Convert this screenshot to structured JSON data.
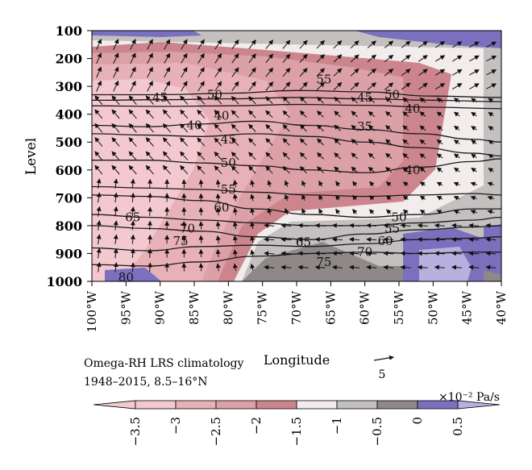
{
  "chart_data": {
    "type": "heatmap",
    "title": "Omega-RH LRS climatology",
    "subtitle": "1948–2015, 8.5–16°N",
    "xlabel": "Longitude",
    "ylabel": "Level",
    "x_ticks": [
      "100°W",
      "95°W",
      "90°W",
      "85°W",
      "80°W",
      "75°W",
      "70°W",
      "65°W",
      "60°W",
      "55°W",
      "50°W",
      "45°W",
      "40°W"
    ],
    "x_values": [
      -100,
      -95,
      -90,
      -85,
      -80,
      -75,
      -70,
      -65,
      -60,
      -55,
      -50,
      -45,
      -40
    ],
    "y_ticks": [
      "100",
      "200",
      "300",
      "400",
      "500",
      "600",
      "700",
      "800",
      "900",
      "1000"
    ],
    "y_values": [
      100,
      200,
      300,
      400,
      500,
      600,
      700,
      800,
      900,
      1000
    ],
    "xlim": [
      -100,
      -40
    ],
    "ylim": [
      1000,
      100
    ],
    "colorbar": {
      "unit": "×10⁻² Pa/s",
      "boundaries": [
        -3.5,
        -3,
        -2.5,
        -2,
        -1.5,
        -1,
        -0.5,
        0,
        0.5
      ],
      "tick_labels": [
        "−3.5",
        "−3",
        "−2.5",
        "−2",
        "−1.5",
        "−1",
        "−0.5",
        "0",
        "0.5"
      ],
      "colors": [
        "#f3c9cf",
        "#e8b1b7",
        "#dca0a7",
        "#cc858d",
        "#f2ecec",
        "#c4c0c0",
        "#8e8888",
        "#7b70bd",
        "#b8b0de"
      ],
      "extend": "both"
    },
    "reference_vector": {
      "label": "5",
      "magnitude": 5
    },
    "contour_labels": [
      {
        "text": "45",
        "lon": -90,
        "level": 340
      },
      {
        "text": "50",
        "lon": -82,
        "level": 330
      },
      {
        "text": "55",
        "lon": -66,
        "level": 275
      },
      {
        "text": "45",
        "lon": -60,
        "level": 340
      },
      {
        "text": "50",
        "lon": -56,
        "level": 330
      },
      {
        "text": "40",
        "lon": -53,
        "level": 380
      },
      {
        "text": "40",
        "lon": -81,
        "level": 405
      },
      {
        "text": "40",
        "lon": -85,
        "level": 440
      },
      {
        "text": "35",
        "lon": -60,
        "level": 445
      },
      {
        "text": "45",
        "lon": -80,
        "level": 490
      },
      {
        "text": "50",
        "lon": -80,
        "level": 575
      },
      {
        "text": "40",
        "lon": -53,
        "level": 600
      },
      {
        "text": "55",
        "lon": -80,
        "level": 670
      },
      {
        "text": "60",
        "lon": -81,
        "level": 735
      },
      {
        "text": "65",
        "lon": -94,
        "level": 770
      },
      {
        "text": "50",
        "lon": -55,
        "level": 770
      },
      {
        "text": "55",
        "lon": -56,
        "level": 810
      },
      {
        "text": "70",
        "lon": -86,
        "level": 810
      },
      {
        "text": "75",
        "lon": -87,
        "level": 855
      },
      {
        "text": "60",
        "lon": -57,
        "level": 855
      },
      {
        "text": "65",
        "lon": -69,
        "level": 860
      },
      {
        "text": "70",
        "lon": -60,
        "level": 895
      },
      {
        "text": "75",
        "lon": -66,
        "level": 930
      },
      {
        "text": "80",
        "lon": -95,
        "level": 985
      }
    ],
    "relative_humidity_contours": [
      {
        "value": 45,
        "lon": [
          -100,
          -90,
          -80,
          -70,
          -60,
          -50,
          -40
        ],
        "level": [
          330,
          330,
          325,
          315,
          320,
          335,
          340
        ]
      },
      {
        "value": 50,
        "lon": [
          -100,
          -90,
          -80,
          -70,
          -60,
          -50,
          -40
        ],
        "level": [
          350,
          348,
          345,
          340,
          345,
          350,
          355
        ]
      },
      {
        "value": 40,
        "lon": [
          -100,
          -90,
          -80,
          -70,
          -60,
          -50,
          -40
        ],
        "level": [
          370,
          372,
          370,
          365,
          368,
          375,
          380
        ]
      },
      {
        "value": 40,
        "lon": [
          -100,
          -92,
          -84,
          -76,
          -68,
          -60,
          -52,
          -44,
          -40
        ],
        "level": [
          440,
          445,
          435,
          425,
          440,
          455,
          470,
          490,
          500
        ]
      },
      {
        "value": 45,
        "lon": [
          -100,
          -92,
          -84,
          -76,
          -68,
          -60,
          -52,
          -44,
          -40
        ],
        "level": [
          470,
          475,
          480,
          470,
          480,
          500,
          520,
          540,
          550
        ]
      },
      {
        "value": 50,
        "lon": [
          -100,
          -92,
          -84,
          -76,
          -68,
          -60,
          -52,
          -44,
          -40
        ],
        "level": [
          565,
          565,
          575,
          585,
          600,
          610,
          590,
          570,
          560
        ]
      },
      {
        "value": 55,
        "lon": [
          -100,
          -92,
          -84,
          -76,
          -68,
          -60,
          -52,
          -44,
          -40
        ],
        "level": [
          660,
          665,
          670,
          680,
          690,
          695,
          690,
          685,
          690
        ]
      },
      {
        "value": 60,
        "lon": [
          -100,
          -92,
          -84,
          -76,
          -68,
          -60,
          -52,
          -44,
          -40
        ],
        "level": [
          690,
          695,
          710,
          740,
          760,
          770,
          760,
          740,
          740
        ]
      },
      {
        "value": 65,
        "lon": [
          -100,
          -92,
          -84,
          -76,
          -68,
          -60,
          -52,
          -44,
          -40
        ],
        "level": [
          760,
          770,
          780,
          790,
          800,
          800,
          790,
          780,
          770
        ]
      },
      {
        "value": 70,
        "lon": [
          -100,
          -92,
          -84,
          -76,
          -68,
          -60,
          -52,
          -44,
          -40
        ],
        "level": [
          800,
          810,
          820,
          840,
          850,
          830,
          815,
          805,
          800
        ]
      },
      {
        "value": 75,
        "lon": [
          -100,
          -92,
          -84,
          -76,
          -68,
          -60,
          -52,
          -44,
          -40
        ],
        "level": [
          880,
          890,
          875,
          870,
          875,
          865,
          850,
          845,
          840
        ]
      },
      {
        "value": 80,
        "lon": [
          -100,
          -92,
          -84,
          -76,
          -68,
          -60,
          -52,
          -44,
          -40
        ],
        "level": [
          940,
          945,
          930,
          910,
          900,
          895,
          900,
          895,
          895
        ]
      }
    ],
    "wind_vector_field": {
      "u_component": "zonal wind",
      "v_component": "negative omega (scaled)",
      "lon_spacing": 2.5,
      "level_spacing": 50
    },
    "grid": false,
    "legend_position": "bottom"
  }
}
